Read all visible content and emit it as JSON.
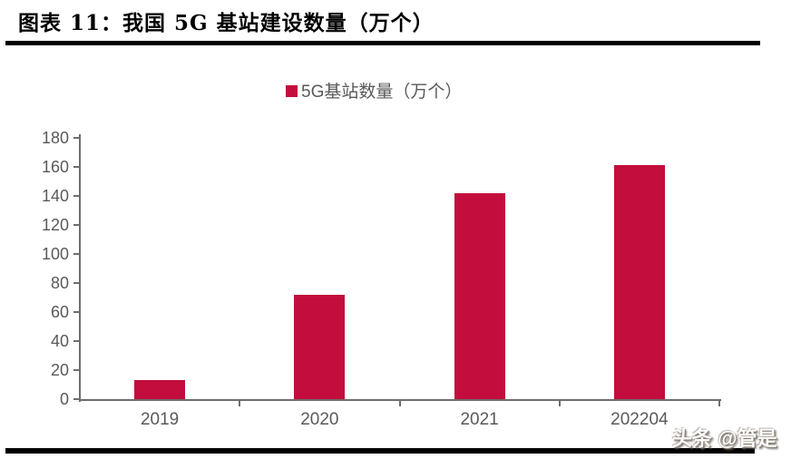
{
  "header": {
    "title": "图表 11：我国 5G 基站建设数量（万个）"
  },
  "legend": {
    "label": "5G基站数量（万个）",
    "marker": "square",
    "marker_color": "#c30d3c"
  },
  "chart_data": {
    "type": "bar",
    "title": "图表 11：我国 5G 基站建设数量（万个）",
    "categories": [
      "2019",
      "2020",
      "2021",
      "202204"
    ],
    "series": [
      {
        "name": "5G基站数量（万个）",
        "values": [
          13,
          72,
          142,
          161
        ]
      }
    ],
    "xlabel": "",
    "ylabel": "",
    "ylim": [
      0,
      180
    ],
    "ytick_step": 20,
    "ytick_labels": [
      "0",
      "20",
      "40",
      "60",
      "80",
      "100",
      "120",
      "140",
      "160",
      "180"
    ],
    "grid": false,
    "legend_position": "top-center",
    "bar_color": "#c30d3c",
    "axis_color": "#6e6e6e",
    "tick_label_color": "#595959"
  },
  "watermark": {
    "text": "头条 @管是"
  }
}
